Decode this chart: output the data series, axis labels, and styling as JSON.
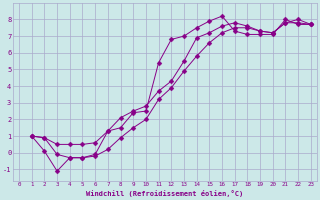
{
  "bg_color": "#cce8e8",
  "grid_color": "#aaaacc",
  "line_color": "#880088",
  "markersize": 2.5,
  "xlabel": "Windchill (Refroidissement éolien,°C)",
  "xlim": [
    -0.5,
    23.5
  ],
  "ylim": [
    -1.7,
    9.0
  ],
  "yticks": [
    -1,
    0,
    1,
    2,
    3,
    4,
    5,
    6,
    7,
    8
  ],
  "xticks": [
    0,
    1,
    2,
    3,
    4,
    5,
    6,
    7,
    8,
    9,
    10,
    11,
    12,
    13,
    14,
    15,
    16,
    17,
    18,
    19,
    20,
    21,
    22,
    23
  ],
  "line1_x": [
    1,
    2,
    3,
    4,
    5,
    6,
    7,
    8,
    9,
    10,
    11,
    12,
    13,
    14,
    15,
    16,
    17,
    18,
    19,
    20,
    21,
    22,
    23
  ],
  "line1_y": [
    1.0,
    0.9,
    -0.1,
    -0.3,
    -0.3,
    -0.1,
    1.3,
    1.5,
    2.4,
    2.5,
    5.4,
    6.8,
    7.0,
    7.5,
    7.9,
    8.2,
    7.3,
    7.1,
    7.1,
    7.1,
    8.0,
    7.7,
    7.7
  ],
  "line2_x": [
    1,
    2,
    3,
    4,
    5,
    6,
    7,
    8,
    9,
    10,
    11,
    12,
    13,
    14,
    15,
    16,
    17,
    18,
    19,
    20,
    21,
    22,
    23
  ],
  "line2_y": [
    1.0,
    0.9,
    0.5,
    0.5,
    0.5,
    0.6,
    1.3,
    2.1,
    2.5,
    2.8,
    3.7,
    4.3,
    5.5,
    6.9,
    7.2,
    7.6,
    7.8,
    7.6,
    7.3,
    7.2,
    7.8,
    8.0,
    7.7
  ],
  "line3_x": [
    1,
    2,
    3,
    4,
    5,
    6,
    7,
    8,
    9,
    10,
    11,
    12,
    13,
    14,
    15,
    16,
    17,
    18,
    19,
    20,
    21,
    22,
    23
  ],
  "line3_y": [
    1.0,
    0.1,
    -1.1,
    -0.3,
    -0.3,
    -0.2,
    0.2,
    0.9,
    1.5,
    2.0,
    3.2,
    3.9,
    4.9,
    5.8,
    6.6,
    7.2,
    7.5,
    7.5,
    7.3,
    7.2,
    7.8,
    7.8,
    7.7
  ],
  "font_family": "monospace"
}
